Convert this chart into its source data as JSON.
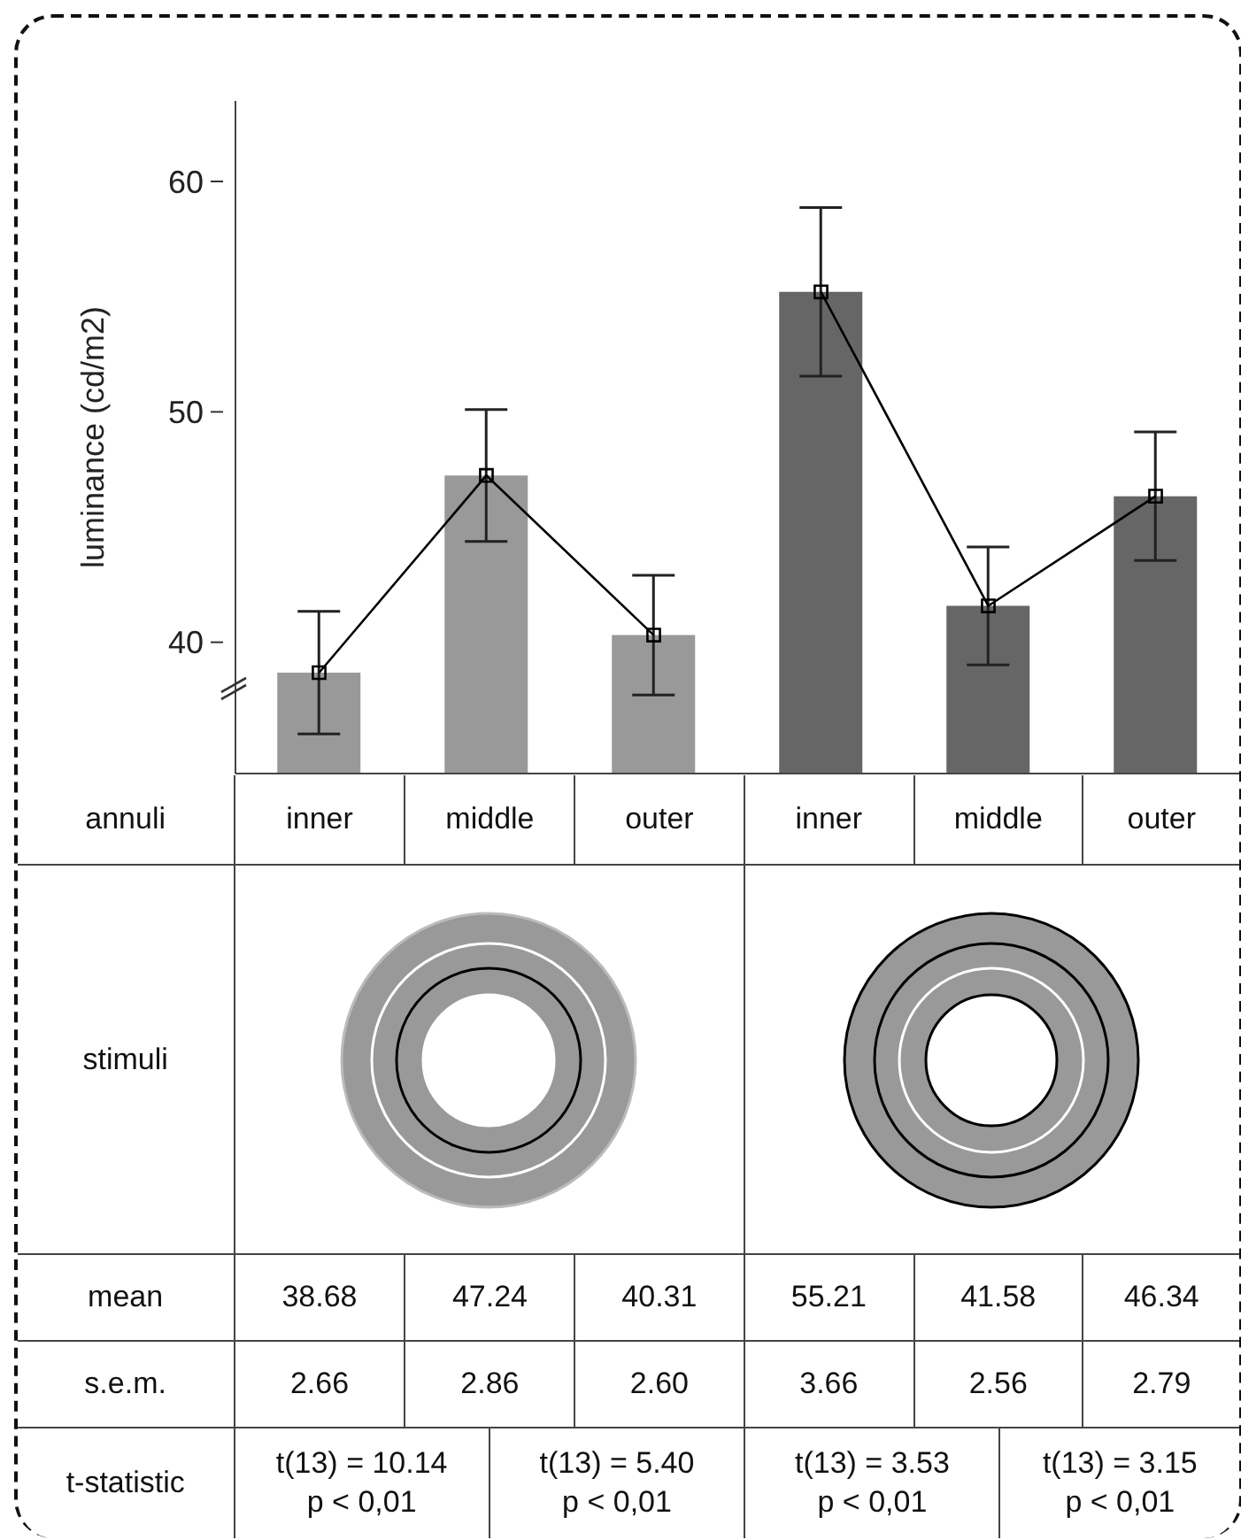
{
  "chart_data": {
    "type": "bar",
    "ylabel": "luminance (cd/m2)",
    "categories": [
      "inner",
      "middle",
      "outer",
      "inner",
      "middle",
      "outer"
    ],
    "series": [
      {
        "colors": [
          "#999999",
          "#999999",
          "#999999",
          "#666666",
          "#666666",
          "#666666"
        ],
        "values": [
          38.68,
          47.24,
          40.31,
          55.21,
          41.58,
          46.34
        ],
        "value_labels": [
          "38.68",
          "47.24",
          "40.31",
          "55.21",
          "41.58",
          "46.34"
        ],
        "errors": [
          2.66,
          2.86,
          2.6,
          3.66,
          2.56,
          2.79
        ]
      },
      {
        "type": "line",
        "color": "#000000",
        "values": [
          38.68,
          47.24,
          40.31,
          null,
          null,
          null
        ]
      },
      {
        "type": "line",
        "color": "#000000",
        "values": [
          null,
          null,
          null,
          55.21,
          41.58,
          46.34
        ]
      }
    ],
    "ylim": [
      34.3,
      63.5
    ],
    "yticks": [
      40,
      50,
      60
    ],
    "marker": "square",
    "line_style": "solid",
    "grid": false,
    "legend": false,
    "annotations": [
      "annuli",
      "stimuli",
      "mean",
      "s.e.m.",
      "t-statistic",
      "t(13) = 10.14\np < 0,01",
      "t(13) = 5.40\np < 0,01",
      "t(13) = 3.53\np < 0,01",
      "t(13) = 3.15\np < 0,01",
      "2.66",
      "2.86",
      "2.60",
      "3.66",
      "2.56",
      "2.79"
    ]
  }
}
